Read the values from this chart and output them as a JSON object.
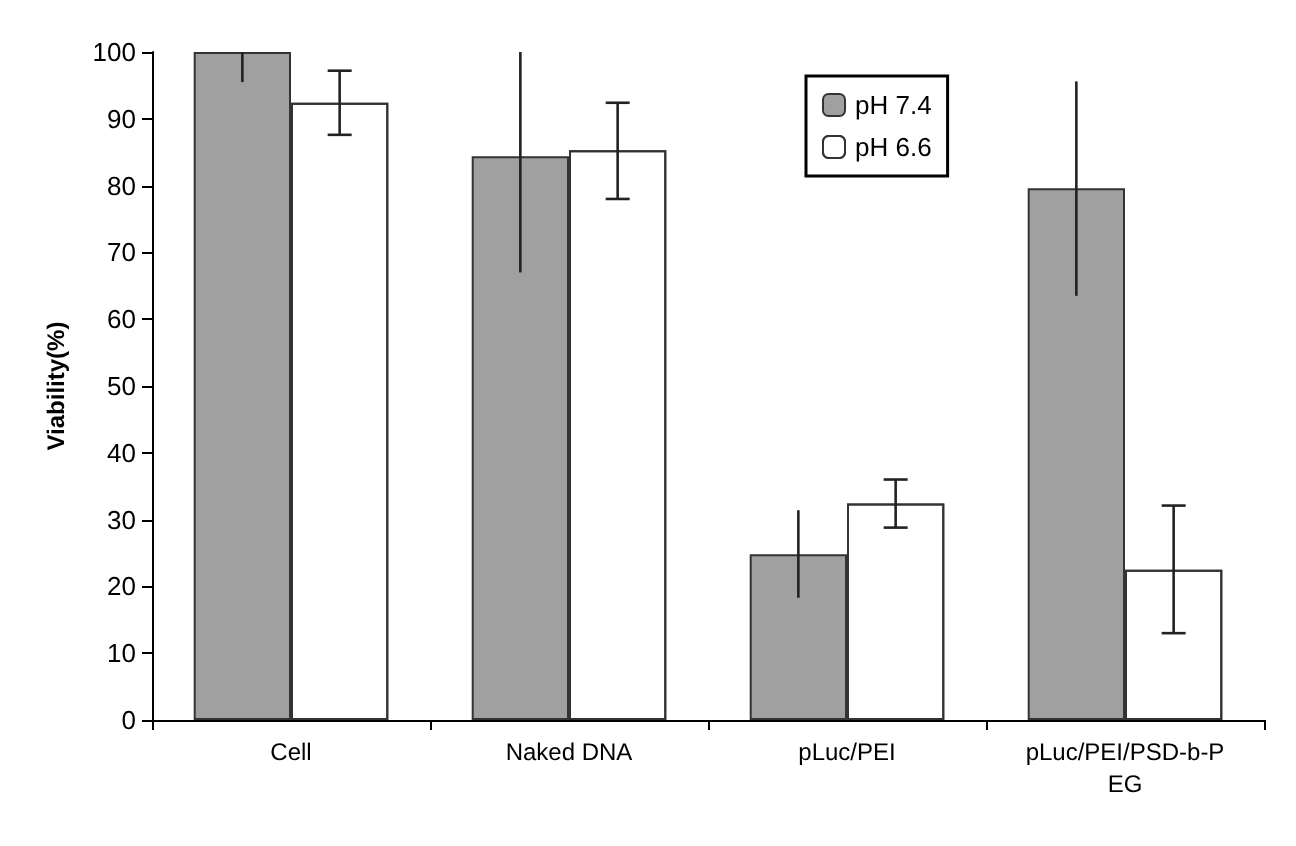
{
  "chart_data": {
    "type": "bar",
    "ylabel": "Viability(%)",
    "categories": [
      "Cell",
      "Naked DNA",
      "pLuc/PEI",
      "pLuc/PEI/PSD-b-PEG"
    ],
    "series": [
      {
        "name": "pH 7.4",
        "color": "#a0a0a0",
        "values": [
          100,
          84.4,
          24.8,
          79.6
        ],
        "errors": [
          [
            95.5,
            100
          ],
          [
            67,
            100
          ],
          [
            18.3,
            31.4
          ],
          [
            63.5,
            95.6
          ]
        ]
      },
      {
        "name": "pH 6.6",
        "color": "#ffffff",
        "values": [
          92.4,
          85.3,
          32.4,
          22.5
        ],
        "errors": [
          [
            87.6,
            97.2
          ],
          [
            78,
            92.4
          ],
          [
            28.8,
            36
          ],
          [
            13,
            32.1
          ]
        ]
      }
    ],
    "ylim": [
      0,
      100
    ],
    "yticks": [
      0,
      10,
      20,
      30,
      40,
      50,
      60,
      70,
      80,
      90,
      100
    ],
    "grid": false,
    "legend": "top"
  }
}
